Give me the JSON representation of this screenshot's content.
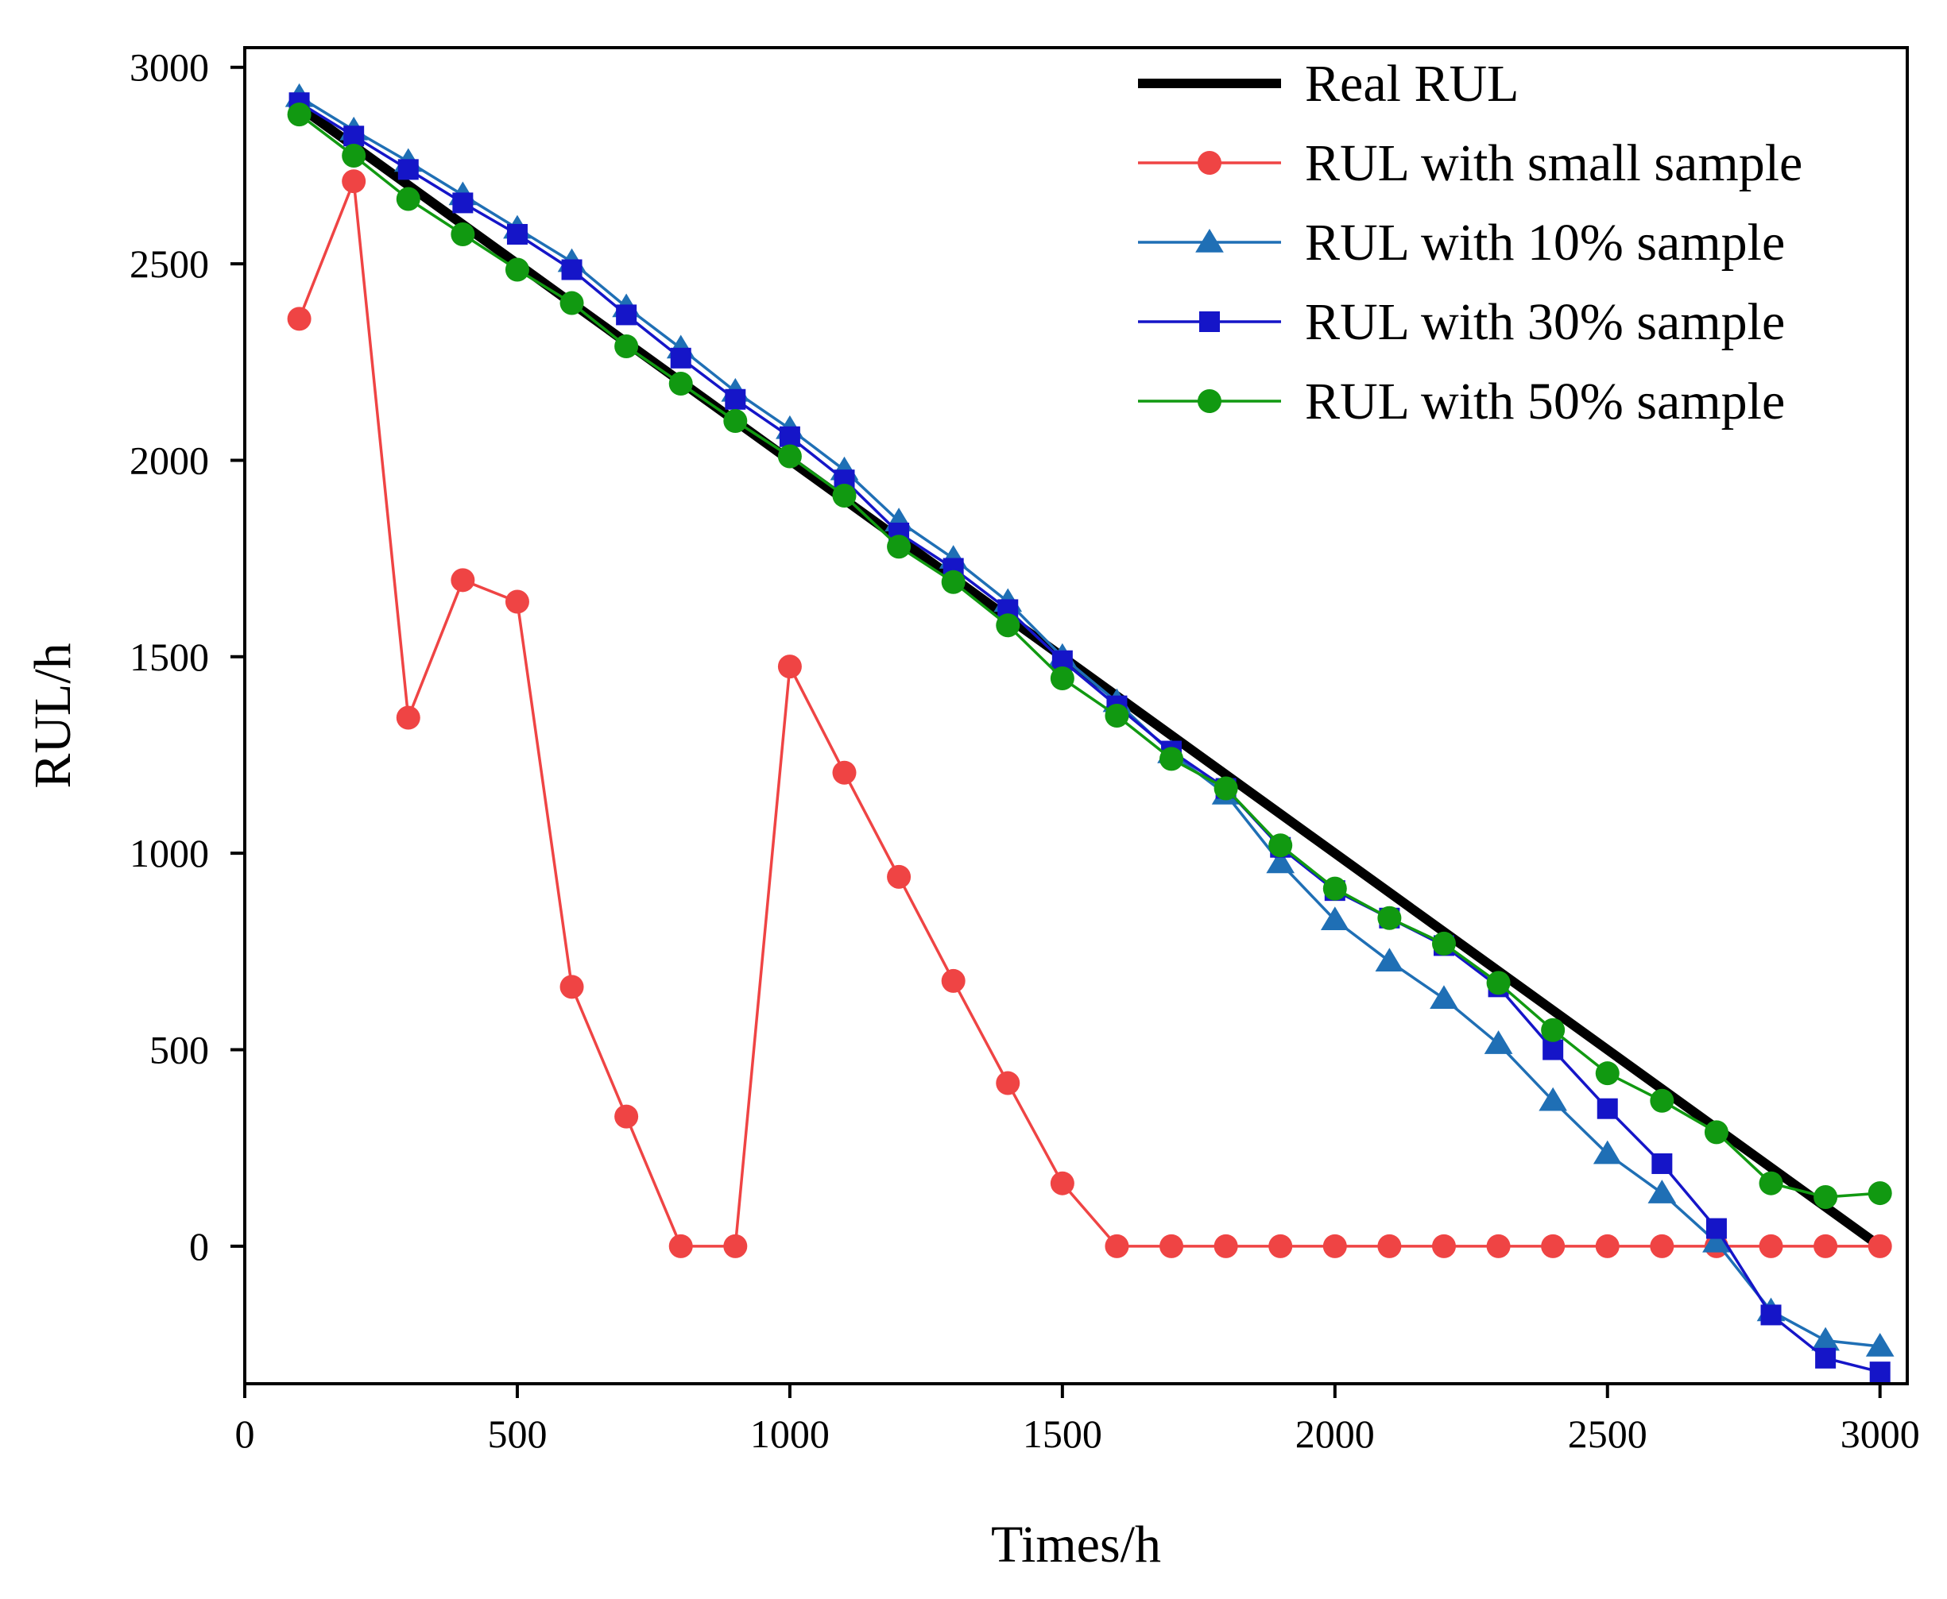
{
  "chart_data": {
    "type": "line",
    "title": "",
    "xlabel": "Times/h",
    "ylabel": "RUL/h",
    "xlim": [
      0,
      3050
    ],
    "ylim": [
      -350,
      3050
    ],
    "xticks": [
      0,
      500,
      1000,
      1500,
      2000,
      2500,
      3000
    ],
    "xtick_labels": [
      "0",
      "500",
      "1000",
      "1500",
      "2000",
      "2500",
      "3000"
    ],
    "yticks": [
      0,
      500,
      1000,
      1500,
      2000,
      2500,
      3000
    ],
    "ytick_labels": [
      "0",
      "500",
      "1000",
      "1500",
      "2000",
      "2500",
      "3000"
    ],
    "grid": false,
    "legend_position": "top-right",
    "series": [
      {
        "name": "Real RUL",
        "marker": "none",
        "color": "#000000",
        "x": [
          100,
          3000
        ],
        "y": [
          2900,
          0
        ]
      },
      {
        "name": "RUL with small sample",
        "marker": "circle",
        "color": "#ef4444",
        "x": [
          100,
          200,
          300,
          400,
          500,
          600,
          700,
          800,
          900,
          1000,
          1100,
          1200,
          1300,
          1400,
          1500,
          1600,
          1700,
          1800,
          1900,
          2000,
          2100,
          2200,
          2300,
          2400,
          2500,
          2600,
          2700,
          2800,
          2900,
          3000
        ],
        "y": [
          2360,
          2710,
          1345,
          1695,
          1640,
          660,
          330,
          0,
          0,
          1475,
          1205,
          940,
          675,
          415,
          160,
          0,
          0,
          0,
          0,
          0,
          0,
          0,
          0,
          0,
          0,
          0,
          0,
          0,
          0,
          0
        ]
      },
      {
        "name": "RUL with 10% sample",
        "marker": "triangle",
        "color": "#1f6fb5",
        "x": [
          100,
          200,
          300,
          400,
          500,
          600,
          700,
          800,
          900,
          1000,
          1100,
          1200,
          1300,
          1400,
          1500,
          1600,
          1700,
          1800,
          1900,
          2000,
          2100,
          2200,
          2300,
          2400,
          2500,
          2600,
          2700,
          2800,
          2900,
          3000
        ],
        "y": [
          2925,
          2840,
          2760,
          2675,
          2590,
          2505,
          2390,
          2285,
          2175,
          2080,
          1975,
          1845,
          1750,
          1640,
          1500,
          1385,
          1255,
          1150,
          975,
          830,
          725,
          630,
          515,
          370,
          235,
          135,
          10,
          -165,
          -240,
          -255
        ]
      },
      {
        "name": "RUL with 30% sample",
        "marker": "square",
        "color": "#1515c8",
        "x": [
          100,
          200,
          300,
          400,
          500,
          600,
          700,
          800,
          900,
          1000,
          1100,
          1200,
          1300,
          1400,
          1500,
          1600,
          1700,
          1800,
          1900,
          2000,
          2100,
          2200,
          2300,
          2400,
          2500,
          2600,
          2700,
          2800,
          2900,
          3000
        ],
        "y": [
          2910,
          2825,
          2740,
          2655,
          2575,
          2485,
          2370,
          2260,
          2155,
          2060,
          1950,
          1815,
          1725,
          1620,
          1490,
          1375,
          1260,
          1165,
          1015,
          905,
          835,
          765,
          660,
          500,
          350,
          210,
          45,
          -175,
          -285,
          -320
        ]
      },
      {
        "name": "RUL with 50% sample",
        "marker": "circle",
        "color": "#119911",
        "x": [
          100,
          200,
          300,
          400,
          500,
          600,
          700,
          800,
          900,
          1000,
          1100,
          1200,
          1300,
          1400,
          1500,
          1600,
          1700,
          1800,
          1900,
          2000,
          2100,
          2200,
          2300,
          2400,
          2500,
          2600,
          2700,
          2800,
          2900,
          3000
        ],
        "y": [
          2880,
          2775,
          2665,
          2575,
          2485,
          2400,
          2290,
          2195,
          2100,
          2010,
          1910,
          1780,
          1690,
          1580,
          1445,
          1350,
          1240,
          1165,
          1020,
          910,
          835,
          770,
          670,
          550,
          440,
          370,
          290,
          160,
          125,
          135
        ]
      }
    ]
  }
}
